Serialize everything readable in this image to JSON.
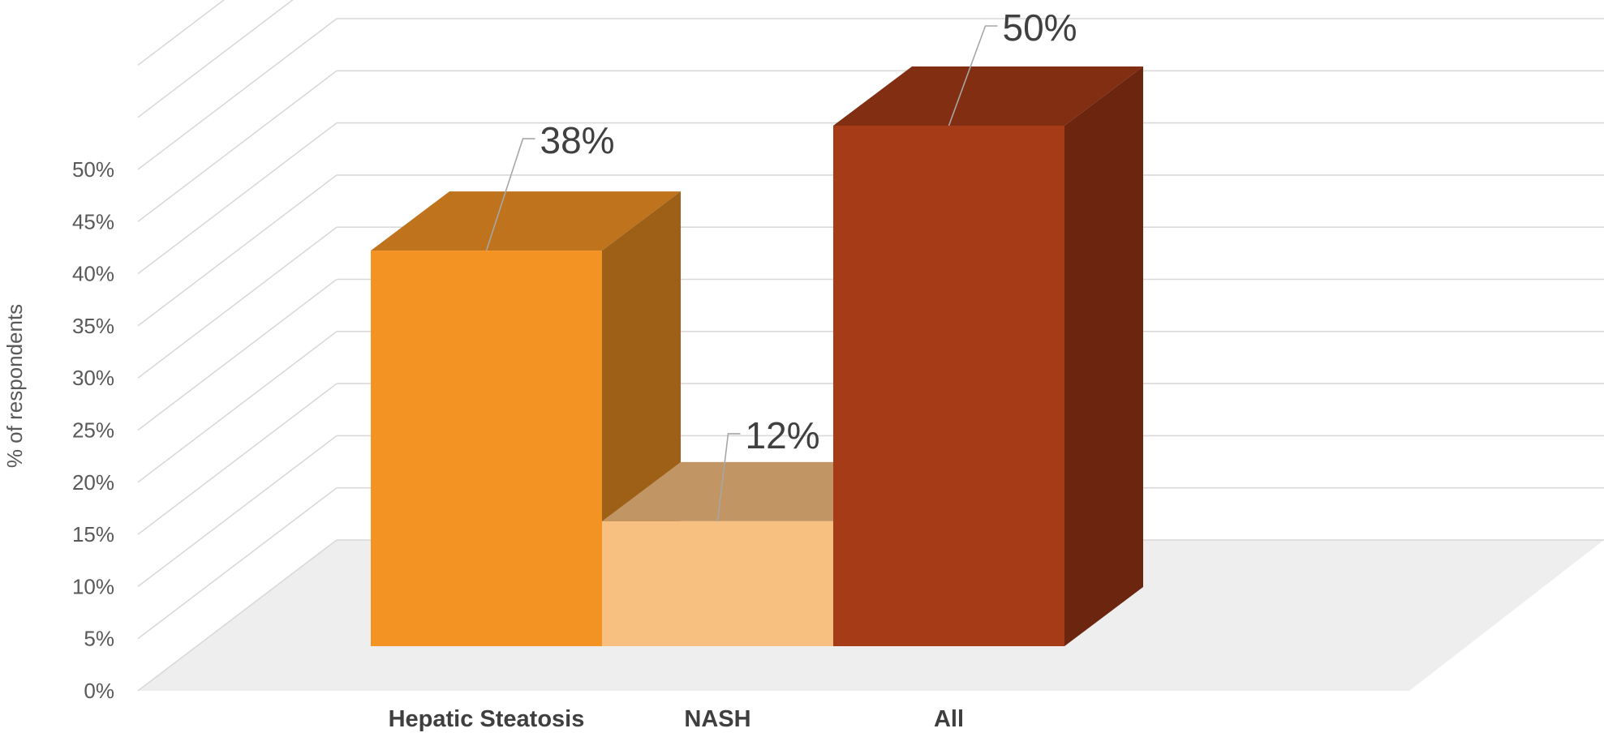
{
  "chart_data": {
    "type": "bar",
    "categories": [
      "Hepatic Steatosis",
      "NASH",
      "All"
    ],
    "values": [
      38,
      12,
      50
    ],
    "value_labels": [
      "38%",
      "12%",
      "50%"
    ],
    "title": "",
    "xlabel": "",
    "ylabel": "% of respondents",
    "ylim": [
      0,
      50
    ],
    "y_ticks": [
      0,
      5,
      10,
      15,
      20,
      25,
      30,
      35,
      40,
      45,
      50
    ],
    "y_tick_labels": [
      "0%",
      "5%",
      "10%",
      "15%",
      "20%",
      "25%",
      "30%",
      "35%",
      "40%",
      "45%",
      "50%"
    ],
    "grid": true,
    "legend": "none",
    "style": "3d-column",
    "colors": {
      "bars": [
        "#F39324",
        "#F8C080",
        "#A63B17"
      ],
      "floor": "#EEEEEE",
      "gridlines": "#D9D9D9",
      "text": "#595959",
      "data_labels": "#404040"
    }
  }
}
